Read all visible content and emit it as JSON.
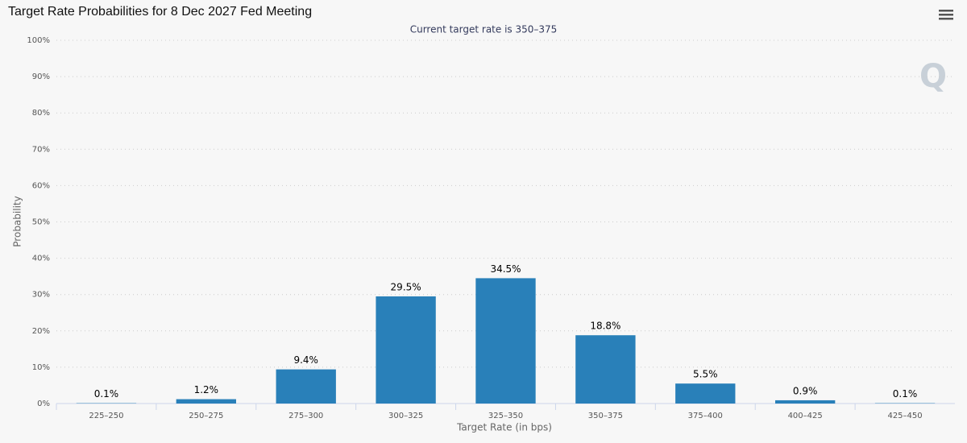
{
  "chart_data": {
    "type": "bar",
    "title": "Target Rate Probabilities for 8 Dec 2027 Fed Meeting",
    "subtitle": "Current target rate is 350–375",
    "x_label": "Target Rate (in bps)",
    "y_label": "Probability",
    "categories": [
      "225–250",
      "250–275",
      "275–300",
      "300–325",
      "325–350",
      "350–375",
      "375–400",
      "400–425",
      "425–450"
    ],
    "values": [
      0.1,
      1.2,
      9.4,
      29.5,
      34.5,
      18.8,
      5.5,
      0.9,
      0.1
    ],
    "value_labels": [
      "0.1%",
      "1.2%",
      "9.4%",
      "29.5%",
      "34.5%",
      "18.8%",
      "5.5%",
      "0.9%",
      "0.1%"
    ],
    "color": "#2980b9",
    "ylim": [
      0,
      100
    ],
    "yticks": [
      {
        "value": 0,
        "label": "0%"
      },
      {
        "value": 10,
        "label": "10%"
      },
      {
        "value": 20,
        "label": "20%"
      },
      {
        "value": 30,
        "label": "30%"
      },
      {
        "value": 40,
        "label": "40%"
      },
      {
        "value": 50,
        "label": "50%"
      },
      {
        "value": 60,
        "label": "60%"
      },
      {
        "value": 70,
        "label": "70%"
      },
      {
        "value": 80,
        "label": "80%"
      },
      {
        "value": 90,
        "label": "90%"
      },
      {
        "value": 100,
        "label": "100%"
      }
    ],
    "grid": true
  }
}
